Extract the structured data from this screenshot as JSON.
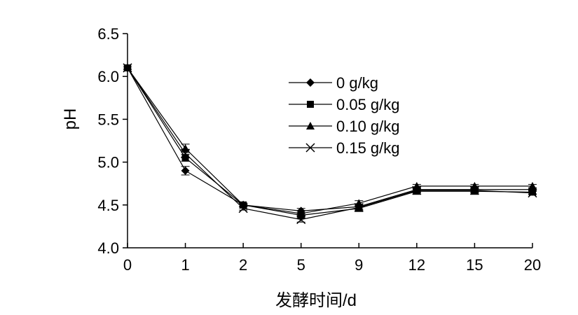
{
  "chart_data": {
    "type": "line",
    "title": "",
    "xlabel": "发酵时间/d",
    "ylabel": "pH",
    "categories": [
      "0",
      "1",
      "2",
      "5",
      "9",
      "12",
      "15",
      "20"
    ],
    "ylim": [
      4.0,
      6.5
    ],
    "yticks": [
      "4.0",
      "4.5",
      "5.0",
      "5.5",
      "6.0",
      "6.5"
    ],
    "grid": false,
    "legend_position": "top-right",
    "series": [
      {
        "name": "0 g/kg",
        "marker": "diamond",
        "values": [
          6.1,
          4.9,
          4.5,
          4.43,
          4.48,
          4.68,
          4.68,
          4.68
        ],
        "errors": [
          0.02,
          0.05,
          0.02,
          0.03,
          0.03,
          0.02,
          0.02,
          0.02
        ]
      },
      {
        "name": "0.05 g/kg",
        "marker": "square",
        "values": [
          6.1,
          5.05,
          4.5,
          4.38,
          4.46,
          4.66,
          4.66,
          4.65
        ],
        "errors": [
          0.02,
          0.04,
          0.02,
          0.03,
          0.03,
          0.02,
          0.02,
          0.02
        ]
      },
      {
        "name": "0.10 g/kg",
        "marker": "triangle",
        "values": [
          6.1,
          5.16,
          4.5,
          4.4,
          4.52,
          4.72,
          4.72,
          4.72
        ],
        "errors": [
          0.02,
          0.05,
          0.02,
          0.03,
          0.03,
          0.02,
          0.02,
          0.02
        ]
      },
      {
        "name": "0.15 g/kg",
        "marker": "cross",
        "values": [
          6.1,
          5.1,
          4.46,
          4.33,
          4.47,
          4.67,
          4.67,
          4.64
        ],
        "errors": [
          0.02,
          0.05,
          0.02,
          0.03,
          0.03,
          0.02,
          0.02,
          0.02
        ]
      }
    ]
  }
}
